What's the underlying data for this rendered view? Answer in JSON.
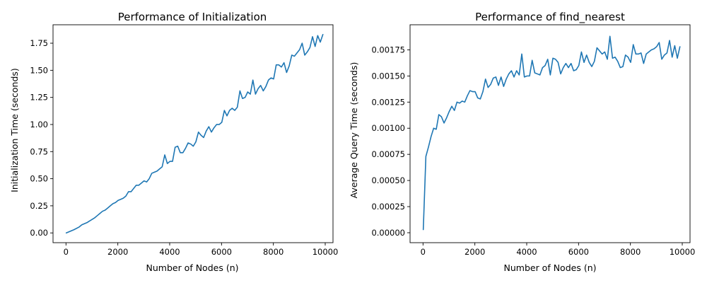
{
  "colors": {
    "series": "#1f77b4"
  },
  "chart_data": [
    {
      "type": "line",
      "title": "Performance of Initialization",
      "xlabel": "Number of Nodes (n)",
      "ylabel": "Initialization Time (seconds)",
      "xlim": [
        -500,
        10300
      ],
      "ylim": [
        -0.09,
        1.92
      ],
      "xticks": [
        0,
        2000,
        4000,
        6000,
        8000,
        10000
      ],
      "xtick_labels": [
        "0",
        "2000",
        "4000",
        "6000",
        "8000",
        "10000"
      ],
      "yticks": [
        0,
        0.25,
        0.5,
        0.75,
        1.0,
        1.25,
        1.5,
        1.75
      ],
      "ytick_labels": [
        "0.00",
        "0.25",
        "0.50",
        "0.75",
        "1.00",
        "1.25",
        "1.50",
        "1.75"
      ],
      "series": [
        {
          "name": "Initialization",
          "x": [
            10,
            310,
            510,
            610,
            810,
            910,
            1010,
            1110,
            1210,
            1310,
            1410,
            1510,
            1610,
            1710,
            1810,
            1910,
            2010,
            2110,
            2210,
            2310,
            2410,
            2510,
            2610,
            2710,
            2810,
            2910,
            3010,
            3110,
            3210,
            3310,
            3410,
            3510,
            3610,
            3710,
            3810,
            3910,
            4010,
            4110,
            4210,
            4310,
            4410,
            4510,
            4610,
            4710,
            4810,
            4910,
            5010,
            5110,
            5210,
            5310,
            5410,
            5510,
            5610,
            5710,
            5810,
            5910,
            6010,
            6110,
            6210,
            6310,
            6410,
            6510,
            6610,
            6710,
            6810,
            6910,
            7010,
            7110,
            7210,
            7310,
            7410,
            7510,
            7610,
            7710,
            7810,
            7910,
            8010,
            8110,
            8210,
            8310,
            8410,
            8510,
            8610,
            8710,
            8810,
            8910,
            9010,
            9110,
            9210,
            9310,
            9410,
            9510,
            9610,
            9710,
            9810,
            9910
          ],
          "y": [
            0.0,
            0.03,
            0.055,
            0.075,
            0.095,
            0.11,
            0.125,
            0.14,
            0.16,
            0.18,
            0.2,
            0.21,
            0.23,
            0.25,
            0.27,
            0.28,
            0.3,
            0.31,
            0.32,
            0.34,
            0.38,
            0.38,
            0.41,
            0.44,
            0.44,
            0.46,
            0.48,
            0.47,
            0.5,
            0.55,
            0.56,
            0.57,
            0.59,
            0.61,
            0.72,
            0.64,
            0.66,
            0.66,
            0.79,
            0.8,
            0.74,
            0.74,
            0.78,
            0.83,
            0.82,
            0.8,
            0.84,
            0.93,
            0.9,
            0.88,
            0.94,
            0.98,
            0.93,
            0.97,
            1.0,
            1.0,
            1.02,
            1.13,
            1.08,
            1.13,
            1.15,
            1.13,
            1.16,
            1.31,
            1.24,
            1.25,
            1.3,
            1.28,
            1.41,
            1.28,
            1.33,
            1.36,
            1.31,
            1.35,
            1.41,
            1.43,
            1.42,
            1.55,
            1.55,
            1.53,
            1.57,
            1.48,
            1.54,
            1.64,
            1.63,
            1.66,
            1.69,
            1.75,
            1.64,
            1.67,
            1.71,
            1.81,
            1.72,
            1.82,
            1.76,
            1.83
          ]
        }
      ]
    },
    {
      "type": "line",
      "title": "Performance of find_nearest",
      "xlabel": "Number of Nodes (n)",
      "ylabel": "Average Query Time (seconds)",
      "xlim": [
        -500,
        10300
      ],
      "ylim": [
        -9.5e-05,
        0.00199
      ],
      "xticks": [
        0,
        2000,
        4000,
        6000,
        8000,
        10000
      ],
      "xtick_labels": [
        "0",
        "2000",
        "4000",
        "6000",
        "8000",
        "10000"
      ],
      "yticks": [
        0,
        0.00025,
        0.0005,
        0.00075,
        0.001,
        0.00125,
        0.0015,
        0.00175
      ],
      "ytick_labels": [
        "0.00000",
        "0.00025",
        "0.00050",
        "0.00075",
        "0.00100",
        "0.00125",
        "0.00150",
        "0.00175"
      ],
      "series": [
        {
          "name": "find_nearest",
          "x": [
            10,
            110,
            210,
            310,
            410,
            510,
            610,
            710,
            810,
            910,
            1010,
            1110,
            1210,
            1310,
            1410,
            1510,
            1610,
            1710,
            1810,
            1910,
            2010,
            2110,
            2210,
            2310,
            2410,
            2510,
            2610,
            2710,
            2810,
            2910,
            3010,
            3110,
            3210,
            3310,
            3410,
            3510,
            3610,
            3710,
            3810,
            3910,
            4010,
            4110,
            4210,
            4310,
            4410,
            4510,
            4610,
            4710,
            4810,
            4910,
            5010,
            5110,
            5210,
            5310,
            5410,
            5510,
            5610,
            5710,
            5810,
            5910,
            6010,
            6110,
            6210,
            6310,
            6410,
            6510,
            6610,
            6710,
            6810,
            6910,
            7010,
            7110,
            7210,
            7310,
            7410,
            7510,
            7610,
            7710,
            7810,
            7910,
            8010,
            8110,
            8210,
            8310,
            8410,
            8510,
            8610,
            8710,
            8810,
            8910,
            9010,
            9110,
            9210,
            9310,
            9410,
            9510,
            9610,
            9710,
            9810,
            9910
          ],
          "y": [
            3e-05,
            0.00073,
            0.00082,
            0.00092,
            0.001,
            0.00099,
            0.00113,
            0.00111,
            0.00105,
            0.0011,
            0.00116,
            0.00121,
            0.00117,
            0.00125,
            0.00124,
            0.00126,
            0.00125,
            0.00131,
            0.00136,
            0.00135,
            0.00135,
            0.00129,
            0.00128,
            0.00135,
            0.00147,
            0.00139,
            0.00142,
            0.00148,
            0.00149,
            0.00141,
            0.00149,
            0.0014,
            0.00147,
            0.00152,
            0.00155,
            0.00149,
            0.00155,
            0.00151,
            0.00171,
            0.00149,
            0.0015,
            0.0015,
            0.00165,
            0.00153,
            0.00152,
            0.00151,
            0.00158,
            0.0016,
            0.00166,
            0.00151,
            0.00167,
            0.00166,
            0.00163,
            0.00152,
            0.00158,
            0.00162,
            0.00158,
            0.00162,
            0.00155,
            0.00156,
            0.0016,
            0.00173,
            0.00163,
            0.0017,
            0.00163,
            0.00159,
            0.00164,
            0.00177,
            0.00174,
            0.00171,
            0.00173,
            0.00166,
            0.00188,
            0.00167,
            0.00168,
            0.00164,
            0.00158,
            0.00159,
            0.0017,
            0.00168,
            0.00163,
            0.0018,
            0.00171,
            0.00171,
            0.00172,
            0.00162,
            0.00171,
            0.00173,
            0.00175,
            0.00176,
            0.00178,
            0.00182,
            0.00166,
            0.0017,
            0.00172,
            0.00184,
            0.00168,
            0.00179,
            0.00167,
            0.00178
          ]
        }
      ]
    }
  ]
}
